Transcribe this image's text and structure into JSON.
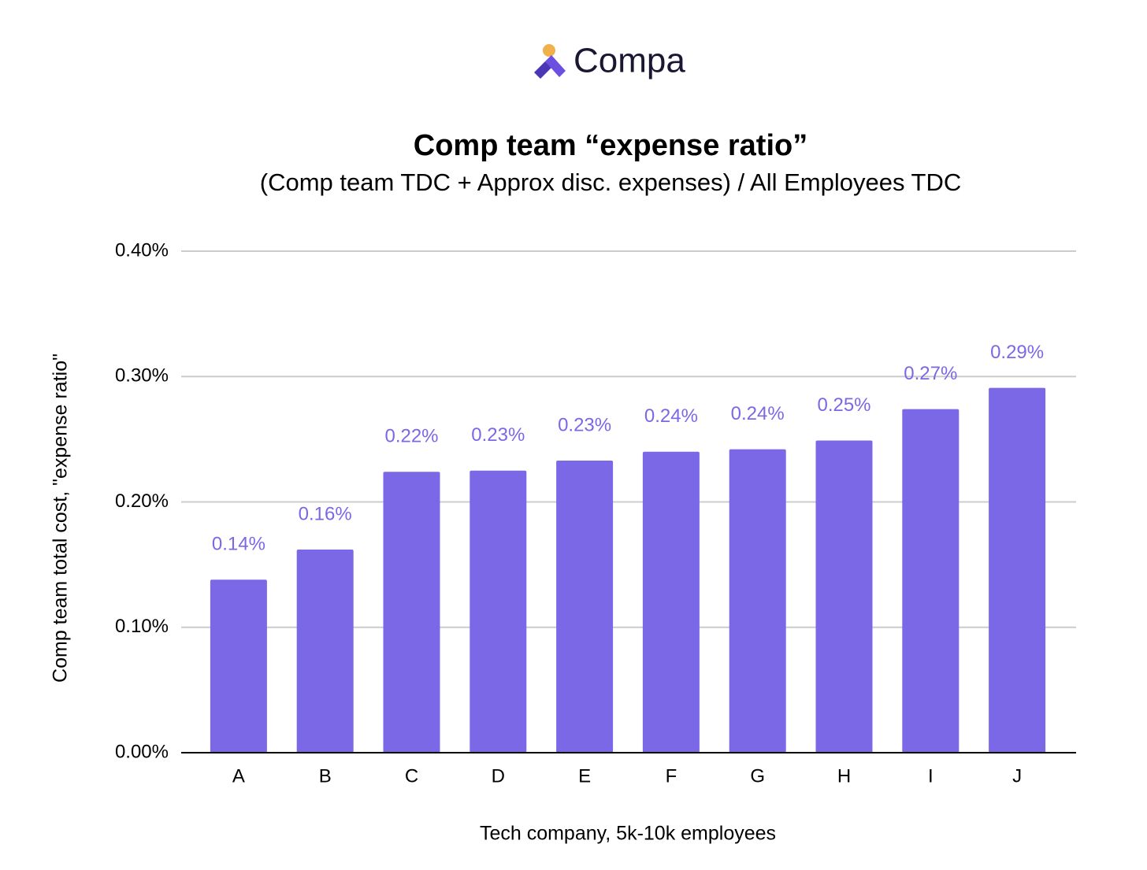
{
  "logo": {
    "text": "Compa"
  },
  "chart_data": {
    "type": "bar",
    "title": "Comp team “expense ratio”",
    "subtitle": "(Comp team TDC + Approx disc. expenses) / All Employees TDC",
    "x_label": "Tech company, 5k-10k employees",
    "y_label": "Comp team total cost, \"expense ratio\"",
    "categories": [
      "A",
      "B",
      "C",
      "D",
      "E",
      "F",
      "G",
      "H",
      "I",
      "J"
    ],
    "values": [
      0.138,
      0.162,
      0.224,
      0.225,
      0.233,
      0.24,
      0.242,
      0.249,
      0.274,
      0.291
    ],
    "value_labels": [
      "0.14%",
      "0.16%",
      "0.22%",
      "0.23%",
      "0.23%",
      "0.24%",
      "0.24%",
      "0.25%",
      "0.27%",
      "0.29%"
    ],
    "color": "#7b68e6",
    "ylim": [
      0,
      0.4
    ],
    "yticks": [
      {
        "value": 0,
        "label": "0.00%"
      },
      {
        "value": 0.1,
        "label": "0.10%"
      },
      {
        "value": 0.2,
        "label": "0.20%"
      },
      {
        "value": 0.3,
        "label": "0.30%"
      },
      {
        "value": 0.4,
        "label": "0.40%"
      }
    ],
    "grid": true
  }
}
